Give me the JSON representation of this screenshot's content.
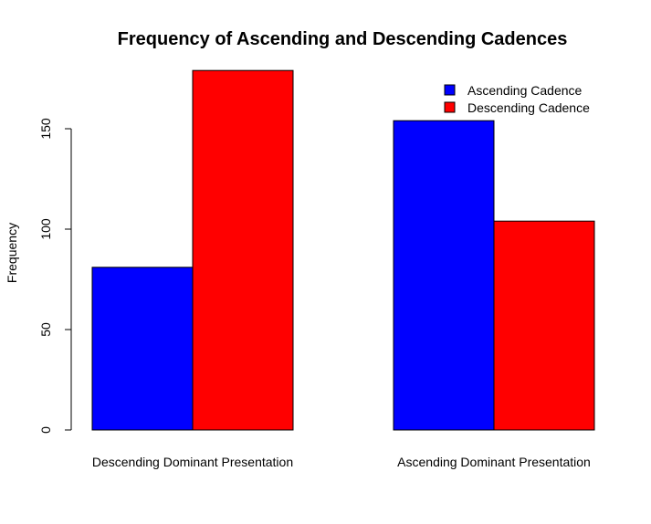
{
  "chart_data": {
    "type": "bar",
    "title": "Frequency of Ascending and Descending Cadences",
    "ylabel": "Frequency",
    "xlabel": "",
    "categories": [
      "Descending Dominant Presentation",
      "Ascending Dominant Presentation"
    ],
    "series": [
      {
        "name": "Ascending Cadence",
        "color": "#0000ff",
        "values": [
          81,
          154
        ]
      },
      {
        "name": "Descending Cadence",
        "color": "#ff0000",
        "values": [
          179,
          104
        ]
      }
    ],
    "ylim": [
      0,
      180
    ],
    "yticks": [
      0,
      50,
      100,
      150
    ],
    "grid": false,
    "legend": "top-right"
  }
}
